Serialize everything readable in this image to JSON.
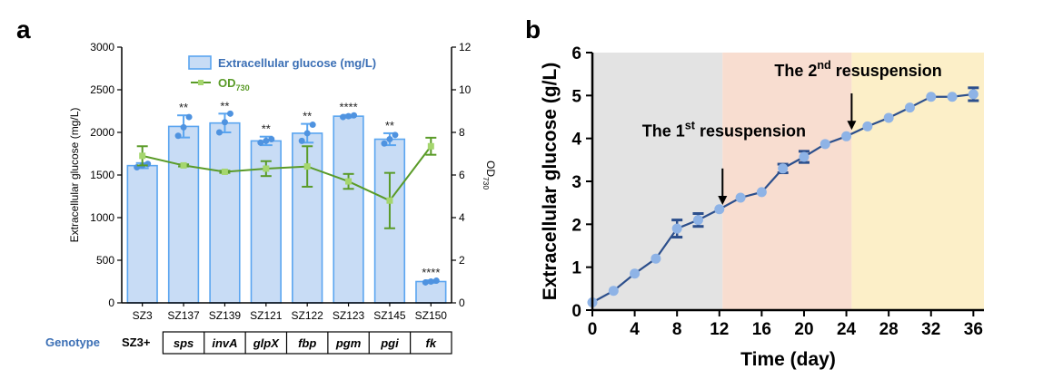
{
  "panels": {
    "a": {
      "label": "a"
    },
    "b": {
      "label": "b"
    }
  },
  "chart_data": [
    {
      "type": "bar",
      "panel": "a",
      "categories": [
        "SZ3",
        "SZ137",
        "SZ139",
        "SZ121",
        "SZ122",
        "SZ123",
        "SZ145",
        "SZ150"
      ],
      "ylabel": "Extracellular glucose (mg/L)",
      "ylim": [
        0,
        3000
      ],
      "yticks": [
        0,
        500,
        1000,
        1500,
        2000,
        2500,
        3000
      ],
      "y2label": "OD",
      "y2label_sub": "730",
      "y2lim": [
        0,
        12
      ],
      "y2ticks": [
        0,
        2,
        4,
        6,
        8,
        10,
        12
      ],
      "series": [
        {
          "name": "Extracellular glucose (mg/L)",
          "kind": "bar",
          "axis": "left",
          "color": "#5aa5f0",
          "fill": "#c8dcf5",
          "values": [
            1610,
            2070,
            2110,
            1900,
            1990,
            2190,
            1920,
            250
          ],
          "errors": [
            30,
            130,
            110,
            50,
            110,
            15,
            70,
            15
          ],
          "points": [
            [
              1590,
              1610,
              1630
            ],
            [
              1960,
              2060,
              2180
            ],
            [
              2000,
              2120,
              2220
            ],
            [
              1880,
              1900,
              1920
            ],
            [
              1900,
              1990,
              2090
            ],
            [
              2180,
              2190,
              2200
            ],
            [
              1870,
              1920,
              1970
            ],
            [
              240,
              250,
              260
            ]
          ],
          "significance": [
            "",
            "**",
            "**",
            "**",
            "**",
            "****",
            "**",
            "****"
          ]
        },
        {
          "name": "OD",
          "name_sub": "730",
          "kind": "line",
          "axis": "right",
          "color": "#5a9b28",
          "values": [
            6.9,
            6.45,
            6.15,
            6.3,
            6.4,
            5.7,
            4.8,
            7.35
          ],
          "errors": [
            0.45,
            0.05,
            0.05,
            0.35,
            0.95,
            0.35,
            1.3,
            0.4
          ]
        }
      ],
      "legend": "top-center",
      "genotype_row": {
        "label": "Genotype",
        "prefix": "SZ3+",
        "genes": [
          "sps",
          "invA",
          "glpX",
          "fbp",
          "pgm",
          "pgi",
          "fk"
        ]
      }
    },
    {
      "type": "line",
      "panel": "b",
      "xlabel": "Time (day)",
      "ylabel": "Extracellular glucose (g/L)",
      "xlim": [
        0,
        37
      ],
      "ylim": [
        0,
        6
      ],
      "xticks": [
        0,
        4,
        8,
        12,
        16,
        20,
        24,
        28,
        32,
        36
      ],
      "yticks": [
        0,
        1,
        2,
        3,
        4,
        5,
        6
      ],
      "x": [
        0,
        2,
        4,
        6,
        8,
        10,
        12,
        14,
        16,
        18,
        20,
        22,
        24,
        26,
        28,
        30,
        32,
        34,
        36
      ],
      "series": [
        {
          "color": "#2c4f8c",
          "marker_color": "#8eb3e6",
          "values": [
            0.18,
            0.45,
            0.85,
            1.2,
            1.9,
            2.1,
            2.35,
            2.62,
            2.75,
            3.3,
            3.57,
            3.87,
            4.05,
            4.28,
            4.48,
            4.72,
            4.97,
            4.97,
            5.03
          ],
          "errors": [
            0.05,
            0.05,
            0.05,
            0.05,
            0.2,
            0.15,
            0.05,
            0.05,
            0.05,
            0.1,
            0.13,
            0.05,
            0.05,
            0.05,
            0.05,
            0.05,
            0.05,
            0.05,
            0.15
          ]
        }
      ],
      "phases": [
        {
          "x0": 0,
          "x1": 12.3,
          "color": "#e3e3e3"
        },
        {
          "x0": 12.3,
          "x1": 24.5,
          "color": "#f8ddd0"
        },
        {
          "x0": 24.5,
          "x1": 37,
          "color": "#fcefc8"
        }
      ],
      "annotations": [
        {
          "pre": "The 1",
          "sup": "st",
          "post": " resuspension",
          "x": 12.3,
          "y_arrow_from": 3.3,
          "y_arrow_to": 2.45,
          "text_y": 4.05,
          "text_x": 4.7
        },
        {
          "pre": "The 2",
          "sup": "nd",
          "post": " resuspension",
          "x": 24.5,
          "y_arrow_from": 5.05,
          "y_arrow_to": 4.2,
          "text_y": 5.45,
          "text_x": 17.2
        }
      ]
    }
  ]
}
